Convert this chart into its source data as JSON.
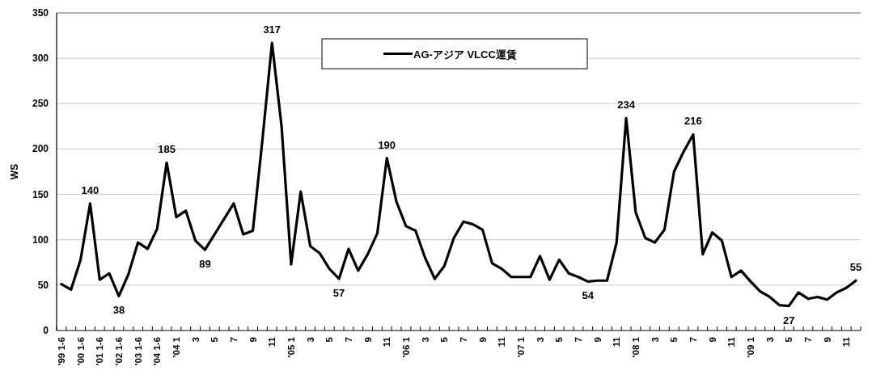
{
  "chart_data": {
    "type": "line",
    "ylabel": "WS",
    "categories": [
      "'99 1-6",
      null,
      "'00 1-6",
      null,
      "'01 1-6",
      null,
      "'02 1-6",
      null,
      "'03 1-6",
      null,
      "'04 1-6",
      null,
      "'04 1",
      null,
      "3",
      null,
      "5",
      null,
      "7",
      null,
      "9",
      null,
      "11",
      null,
      "'05 1",
      null,
      "3",
      null,
      "5",
      null,
      "7",
      null,
      "9",
      null,
      "11",
      null,
      "'06 1",
      null,
      "3",
      null,
      "5",
      null,
      "7",
      null,
      "9",
      null,
      "11",
      null,
      "'07 1",
      null,
      "3",
      null,
      "5",
      null,
      "7",
      null,
      "9",
      null,
      "11",
      null,
      "'08 1",
      null,
      "3",
      null,
      "5",
      null,
      "7",
      null,
      "9",
      null,
      "11",
      null,
      "'09 1",
      null,
      "3",
      null,
      "5",
      null,
      "7",
      null,
      "9",
      null,
      "11",
      null
    ],
    "series": [
      {
        "name": "AG-アジア VLCC運賃",
        "color": "#000000",
        "values": [
          51,
          45,
          78,
          140,
          56,
          63,
          38,
          62,
          97,
          90,
          112,
          185,
          125,
          132,
          99,
          89,
          106,
          123,
          140,
          106,
          110,
          210,
          317,
          225,
          73,
          153,
          93,
          85,
          68,
          57,
          90,
          66,
          84,
          107,
          190,
          142,
          115,
          110,
          80,
          57,
          71,
          102,
          120,
          117,
          111,
          74,
          68,
          59,
          59,
          59,
          82,
          56,
          78,
          63,
          59,
          54,
          55,
          55,
          97,
          234,
          130,
          102,
          97,
          111,
          175,
          197,
          216,
          84,
          108,
          99,
          59,
          66,
          54,
          43,
          37,
          28,
          27,
          42,
          35,
          37,
          34,
          42,
          47,
          55
        ],
        "value_labels": [
          null,
          null,
          null,
          "140",
          null,
          null,
          "38",
          null,
          null,
          null,
          null,
          "185",
          null,
          null,
          null,
          "89",
          null,
          null,
          null,
          null,
          null,
          null,
          "317",
          null,
          null,
          null,
          null,
          null,
          null,
          "57",
          null,
          null,
          null,
          null,
          "190",
          null,
          null,
          null,
          null,
          null,
          null,
          null,
          null,
          null,
          null,
          null,
          null,
          null,
          null,
          null,
          null,
          null,
          null,
          null,
          null,
          "54",
          null,
          null,
          null,
          "234",
          null,
          null,
          null,
          null,
          null,
          null,
          "216",
          null,
          null,
          null,
          null,
          null,
          null,
          null,
          null,
          null,
          "27",
          null,
          null,
          null,
          null,
          null,
          null,
          "55"
        ]
      }
    ],
    "ylim": [
      0,
      350
    ],
    "yticks": [
      0,
      50,
      100,
      150,
      200,
      250,
      300,
      350
    ],
    "grid": "y",
    "legend": "top"
  }
}
